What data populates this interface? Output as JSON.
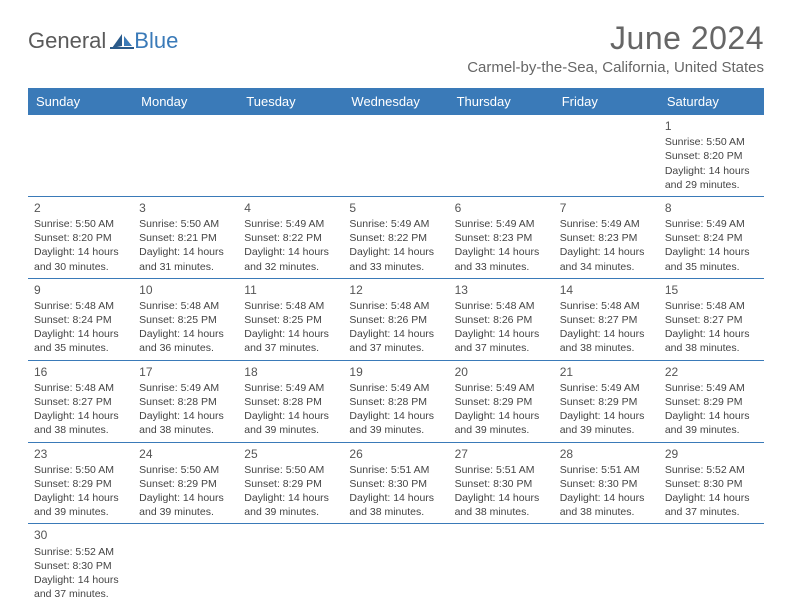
{
  "logo": {
    "general": "General",
    "blue": "Blue"
  },
  "title": "June 2024",
  "location": "Carmel-by-the-Sea, California, United States",
  "colors": {
    "header_bg": "#3a7ab8",
    "header_text": "#ffffff",
    "border": "#3a7ab8",
    "text": "#444444",
    "title": "#666666"
  },
  "day_names": [
    "Sunday",
    "Monday",
    "Tuesday",
    "Wednesday",
    "Thursday",
    "Friday",
    "Saturday"
  ],
  "weeks": [
    [
      null,
      null,
      null,
      null,
      null,
      null,
      {
        "n": "1",
        "sunrise": "5:50 AM",
        "sunset": "8:20 PM",
        "dh": "14",
        "dm": "29"
      }
    ],
    [
      {
        "n": "2",
        "sunrise": "5:50 AM",
        "sunset": "8:20 PM",
        "dh": "14",
        "dm": "30"
      },
      {
        "n": "3",
        "sunrise": "5:50 AM",
        "sunset": "8:21 PM",
        "dh": "14",
        "dm": "31"
      },
      {
        "n": "4",
        "sunrise": "5:49 AM",
        "sunset": "8:22 PM",
        "dh": "14",
        "dm": "32"
      },
      {
        "n": "5",
        "sunrise": "5:49 AM",
        "sunset": "8:22 PM",
        "dh": "14",
        "dm": "33"
      },
      {
        "n": "6",
        "sunrise": "5:49 AM",
        "sunset": "8:23 PM",
        "dh": "14",
        "dm": "33"
      },
      {
        "n": "7",
        "sunrise": "5:49 AM",
        "sunset": "8:23 PM",
        "dh": "14",
        "dm": "34"
      },
      {
        "n": "8",
        "sunrise": "5:49 AM",
        "sunset": "8:24 PM",
        "dh": "14",
        "dm": "35"
      }
    ],
    [
      {
        "n": "9",
        "sunrise": "5:48 AM",
        "sunset": "8:24 PM",
        "dh": "14",
        "dm": "35"
      },
      {
        "n": "10",
        "sunrise": "5:48 AM",
        "sunset": "8:25 PM",
        "dh": "14",
        "dm": "36"
      },
      {
        "n": "11",
        "sunrise": "5:48 AM",
        "sunset": "8:25 PM",
        "dh": "14",
        "dm": "37"
      },
      {
        "n": "12",
        "sunrise": "5:48 AM",
        "sunset": "8:26 PM",
        "dh": "14",
        "dm": "37"
      },
      {
        "n": "13",
        "sunrise": "5:48 AM",
        "sunset": "8:26 PM",
        "dh": "14",
        "dm": "37"
      },
      {
        "n": "14",
        "sunrise": "5:48 AM",
        "sunset": "8:27 PM",
        "dh": "14",
        "dm": "38"
      },
      {
        "n": "15",
        "sunrise": "5:48 AM",
        "sunset": "8:27 PM",
        "dh": "14",
        "dm": "38"
      }
    ],
    [
      {
        "n": "16",
        "sunrise": "5:48 AM",
        "sunset": "8:27 PM",
        "dh": "14",
        "dm": "38"
      },
      {
        "n": "17",
        "sunrise": "5:49 AM",
        "sunset": "8:28 PM",
        "dh": "14",
        "dm": "38"
      },
      {
        "n": "18",
        "sunrise": "5:49 AM",
        "sunset": "8:28 PM",
        "dh": "14",
        "dm": "39"
      },
      {
        "n": "19",
        "sunrise": "5:49 AM",
        "sunset": "8:28 PM",
        "dh": "14",
        "dm": "39"
      },
      {
        "n": "20",
        "sunrise": "5:49 AM",
        "sunset": "8:29 PM",
        "dh": "14",
        "dm": "39"
      },
      {
        "n": "21",
        "sunrise": "5:49 AM",
        "sunset": "8:29 PM",
        "dh": "14",
        "dm": "39"
      },
      {
        "n": "22",
        "sunrise": "5:49 AM",
        "sunset": "8:29 PM",
        "dh": "14",
        "dm": "39"
      }
    ],
    [
      {
        "n": "23",
        "sunrise": "5:50 AM",
        "sunset": "8:29 PM",
        "dh": "14",
        "dm": "39"
      },
      {
        "n": "24",
        "sunrise": "5:50 AM",
        "sunset": "8:29 PM",
        "dh": "14",
        "dm": "39"
      },
      {
        "n": "25",
        "sunrise": "5:50 AM",
        "sunset": "8:29 PM",
        "dh": "14",
        "dm": "39"
      },
      {
        "n": "26",
        "sunrise": "5:51 AM",
        "sunset": "8:30 PM",
        "dh": "14",
        "dm": "38"
      },
      {
        "n": "27",
        "sunrise": "5:51 AM",
        "sunset": "8:30 PM",
        "dh": "14",
        "dm": "38"
      },
      {
        "n": "28",
        "sunrise": "5:51 AM",
        "sunset": "8:30 PM",
        "dh": "14",
        "dm": "38"
      },
      {
        "n": "29",
        "sunrise": "5:52 AM",
        "sunset": "8:30 PM",
        "dh": "14",
        "dm": "37"
      }
    ],
    [
      {
        "n": "30",
        "sunrise": "5:52 AM",
        "sunset": "8:30 PM",
        "dh": "14",
        "dm": "37"
      },
      null,
      null,
      null,
      null,
      null,
      null
    ]
  ],
  "labels": {
    "sunrise_prefix": "Sunrise: ",
    "sunset_prefix": "Sunset: ",
    "daylight_prefix": "Daylight: ",
    "hours_word": " hours",
    "and_word": "and ",
    "minutes_word": " minutes."
  }
}
